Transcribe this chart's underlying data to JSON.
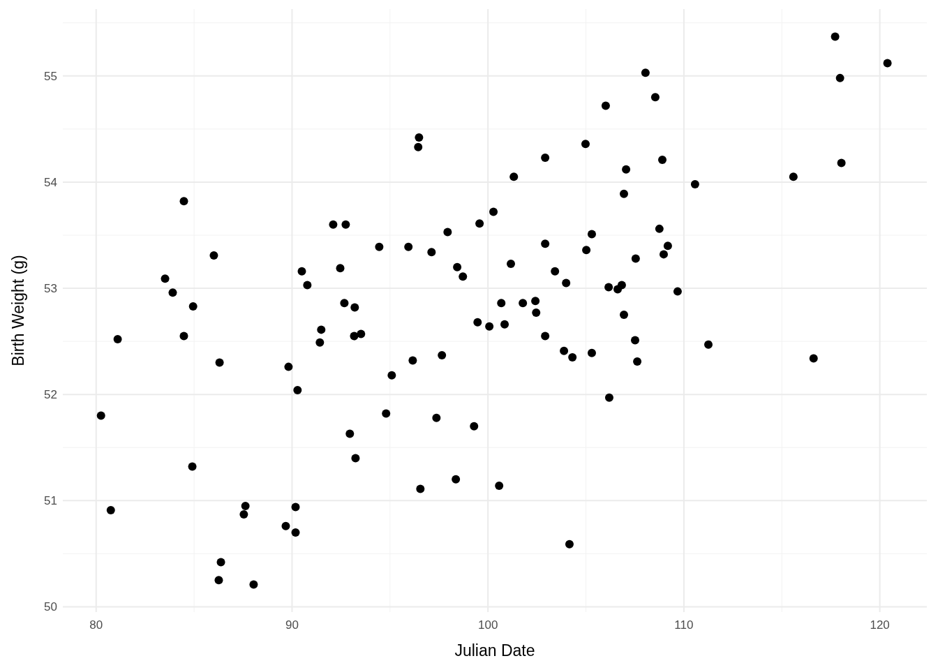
{
  "chart_data": {
    "type": "scatter",
    "xlabel": "Julian Date",
    "ylabel": "Birth Weight (g)",
    "xlim": [
      78.3,
      122.4
    ],
    "ylim": [
      49.95,
      55.63
    ],
    "xticks": [
      80,
      90,
      100,
      110,
      120
    ],
    "yticks": [
      50,
      51,
      52,
      53,
      54,
      55
    ],
    "grid": true,
    "marker": "circle",
    "series": [
      {
        "color": "#000000",
        "x": [
          80.25,
          80.75,
          81.1,
          83.52,
          83.91,
          84.48,
          84.48,
          84.95,
          84.91,
          86.01,
          86.3,
          86.37,
          86.26,
          87.54,
          87.62,
          88.04,
          89.68,
          89.82,
          90.18,
          90.18,
          90.28,
          90.5,
          90.78,
          91.49,
          91.42,
          92.1,
          92.46,
          92.74,
          92.67,
          92.95,
          93.2,
          93.17,
          93.52,
          93.24,
          94.45,
          94.8,
          95.09,
          95.94,
          96.16,
          96.48,
          96.44,
          96.55,
          97.12,
          97.37,
          97.65,
          97.94,
          98.36,
          98.43,
          98.72,
          99.29,
          99.47,
          99.57,
          100.07,
          100.28,
          100.57,
          100.68,
          100.85,
          101.17,
          101.32,
          101.78,
          102.42,
          102.46,
          102.92,
          102.92,
          102.92,
          103.42,
          103.88,
          103.99,
          104.16,
          104.31,
          104.98,
          105.02,
          105.3,
          105.3,
          106.01,
          106.16,
          106.19,
          106.62,
          106.83,
          106.94,
          106.94,
          107.05,
          107.51,
          107.54,
          107.62,
          108.04,
          108.54,
          108.75,
          108.9,
          108.97,
          109.18,
          109.68,
          110.57,
          111.25,
          115.59,
          116.62,
          117.72,
          117.97,
          118.04,
          120.39
        ],
        "values": [
          51.8,
          50.91,
          52.52,
          53.09,
          52.96,
          53.82,
          52.55,
          52.83,
          51.32,
          53.31,
          52.3,
          50.42,
          50.25,
          50.87,
          50.95,
          50.21,
          50.76,
          52.26,
          50.94,
          50.7,
          52.04,
          53.16,
          53.03,
          52.61,
          52.49,
          53.6,
          53.19,
          53.6,
          52.86,
          51.63,
          52.82,
          52.55,
          52.57,
          51.4,
          53.39,
          51.82,
          52.18,
          53.39,
          52.32,
          54.42,
          54.33,
          51.11,
          53.34,
          51.78,
          52.37,
          53.53,
          51.2,
          53.2,
          53.11,
          51.7,
          52.68,
          53.61,
          52.64,
          53.72,
          51.14,
          52.86,
          52.66,
          53.23,
          54.05,
          52.86,
          52.88,
          52.77,
          54.23,
          53.42,
          52.55,
          53.16,
          52.41,
          53.05,
          50.59,
          52.35,
          54.36,
          53.36,
          53.51,
          52.39,
          54.72,
          53.01,
          51.97,
          52.99,
          53.03,
          53.89,
          52.75,
          54.12,
          52.51,
          53.28,
          52.31,
          55.03,
          54.8,
          53.56,
          54.21,
          53.32,
          53.4,
          52.97,
          53.98,
          52.47,
          54.05,
          52.34,
          55.37,
          54.98,
          54.18,
          55.12
        ]
      }
    ]
  }
}
